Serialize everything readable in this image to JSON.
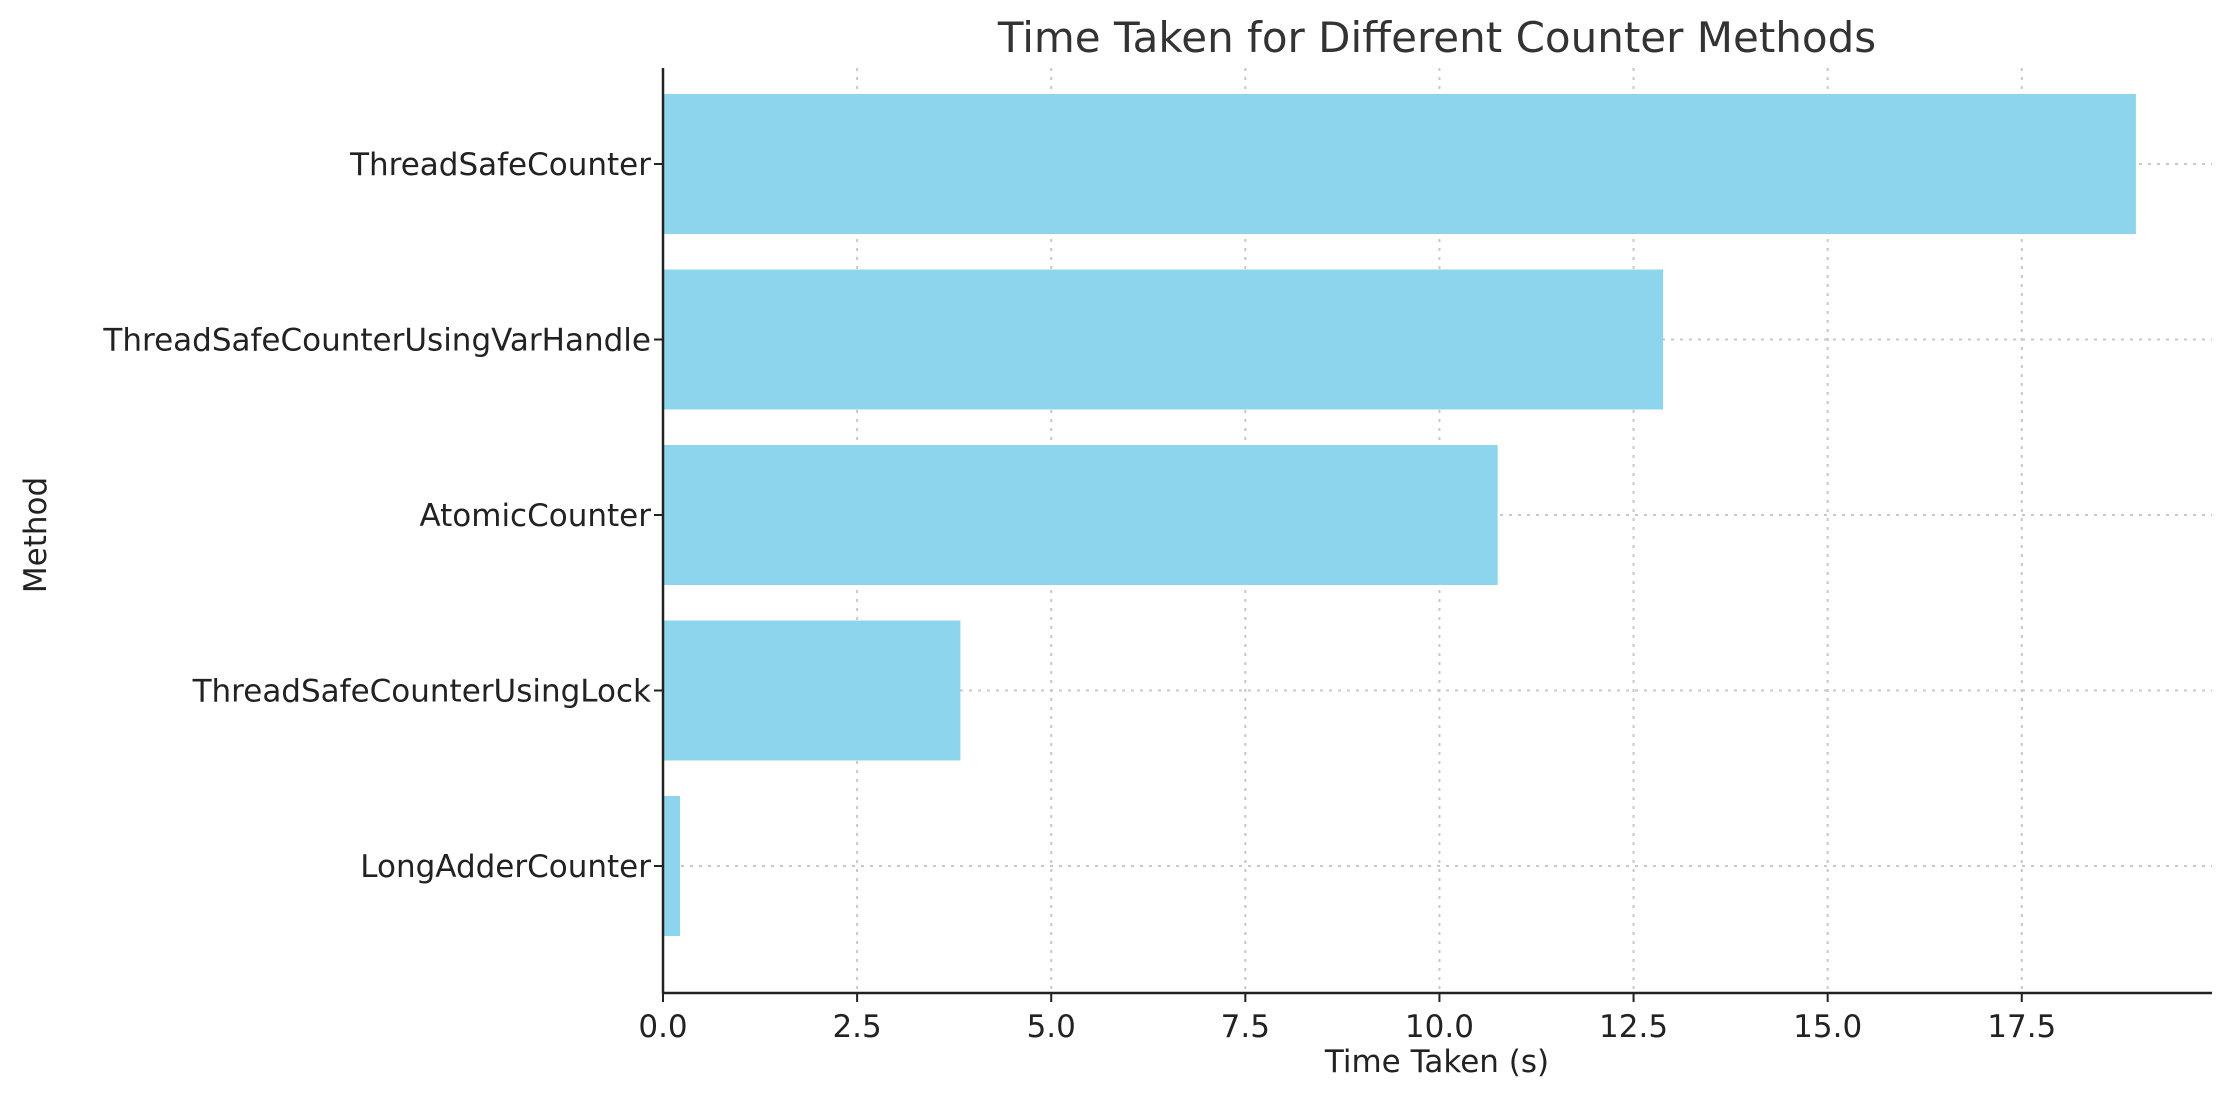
{
  "chart_data": {
    "type": "bar",
    "orientation": "horizontal",
    "title": "Time Taken for Different Counter Methods",
    "xlabel": "Time Taken (s)",
    "ylabel": "Method",
    "categories": [
      "ThreadSafeCounter",
      "ThreadSafeCounterUsingVarHandle",
      "AtomicCounter",
      "ThreadSafeCounterUsingLock",
      "LongAdderCounter"
    ],
    "values": [
      18.97,
      12.88,
      10.75,
      3.83,
      0.22
    ],
    "xlim": [
      0,
      19.95
    ],
    "xticks": [
      0.0,
      2.5,
      5.0,
      7.5,
      10.0,
      12.5,
      15.0,
      17.5
    ],
    "xtick_labels": [
      "0.0",
      "2.5",
      "5.0",
      "7.5",
      "10.0",
      "12.5",
      "15.0",
      "17.5"
    ],
    "grid": true,
    "bar_color": "#8dd4ed"
  }
}
